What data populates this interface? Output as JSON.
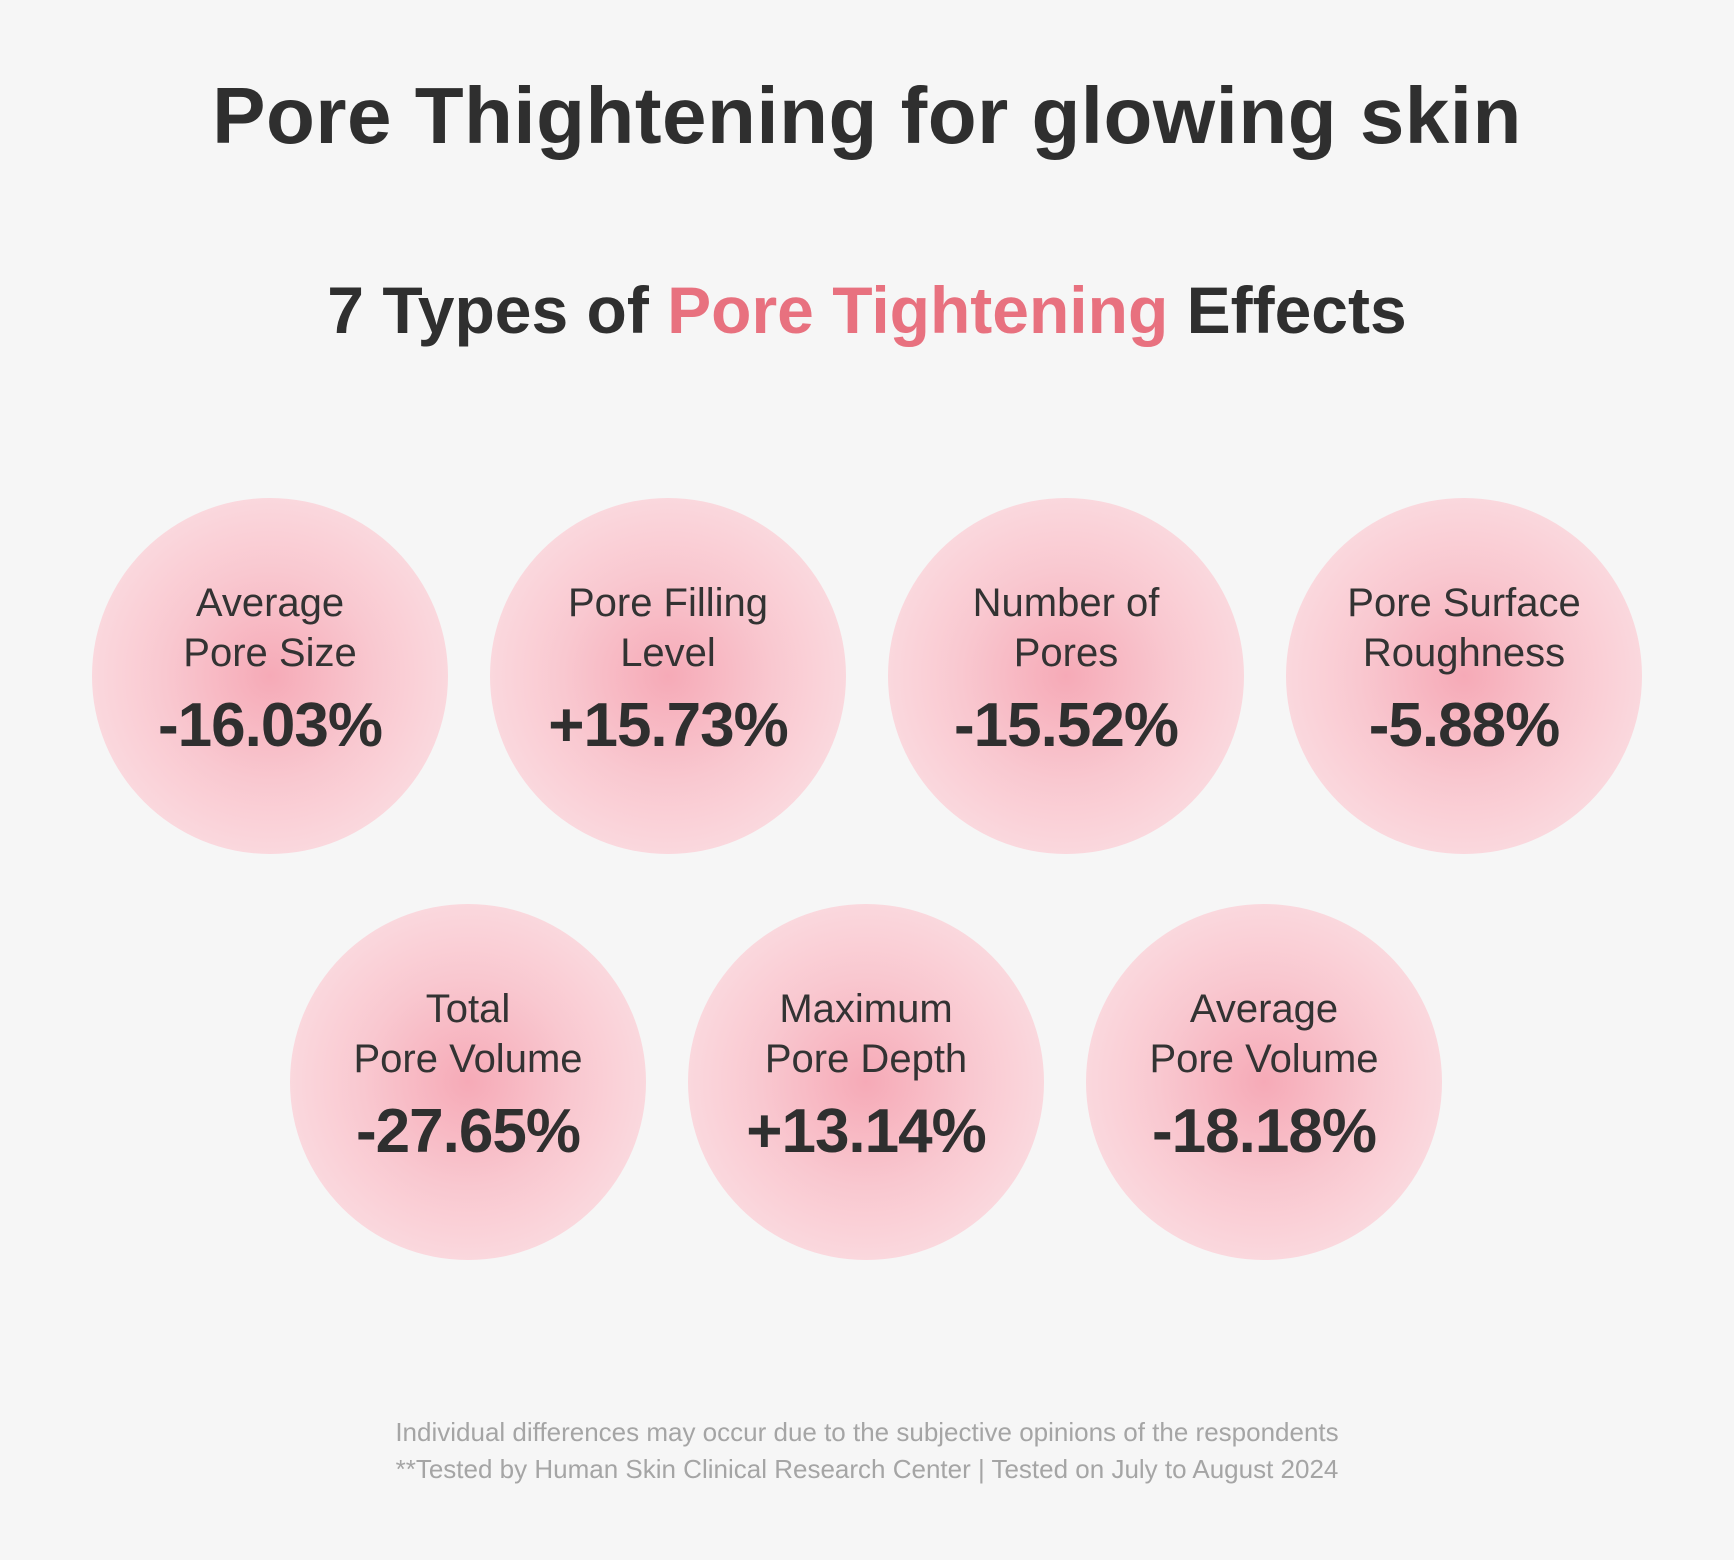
{
  "title": "Pore Thightening for glowing skin",
  "subtitle": {
    "prefix": "7 Types of ",
    "highlight": "Pore Tightening",
    "suffix": " Effects"
  },
  "colors": {
    "background": "#f6f6f6",
    "accent": "#e8717f",
    "circle_fill": "#f9c8d0",
    "text": "#2f2f2f",
    "footnote": "#a5a5a5"
  },
  "effects": [
    {
      "line1": "Average",
      "line2": "Pore Size",
      "value": "-16.03%"
    },
    {
      "line1": "Pore Filling",
      "line2": "Level",
      "value": "+15.73%"
    },
    {
      "line1": "Number of",
      "line2": "Pores",
      "value": "-15.52%"
    },
    {
      "line1": "Pore Surface",
      "line2": "Roughness",
      "value": "-5.88%"
    },
    {
      "line1": "Total",
      "line2": "Pore Volume",
      "value": "-27.65%"
    },
    {
      "line1": "Maximum",
      "line2": "Pore Depth",
      "value": "+13.14%"
    },
    {
      "line1": "Average",
      "line2": "Pore Volume",
      "value": "-18.18%"
    }
  ],
  "footnote": {
    "line1": "Individual differences may occur due to the subjective opinions of the respondents",
    "line2": "**Tested by Human Skin Clinical Research Center | Tested on July to August 2024"
  }
}
